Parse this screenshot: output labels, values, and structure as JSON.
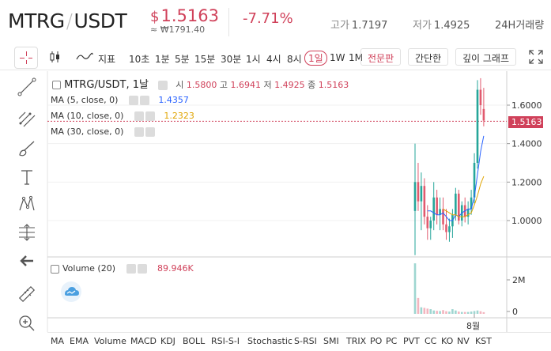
{
  "header": {
    "pair_base": "MTRG",
    "pair_sep": "/",
    "pair_quote": "USDT",
    "price_currency": "$",
    "price": "1.5163",
    "krw": "≈ ₩1791.40",
    "change": "-7.71%",
    "high_label": "고가",
    "high_value": "1.7197",
    "low_label": "저가",
    "low_value": "1.4925",
    "volume_label": "24H거래량"
  },
  "toolbar": {
    "indicator_label": "지표",
    "intervals": [
      "10초",
      "1분",
      "5분",
      "15분",
      "30분",
      "1시",
      "4시",
      "8시",
      "1일",
      "1W",
      "1M"
    ],
    "active_interval": "1일",
    "tabs": [
      "전문판",
      "간단한",
      "깊이 그래프"
    ],
    "active_tab": "전문판"
  },
  "tools": [
    "crosshair-icon",
    "trendline-icon",
    "fib-icon",
    "brush-icon",
    "text-icon",
    "pattern-icon",
    "measure-icon",
    "back-arrow-icon",
    "ruler-icon",
    "zoom-icon"
  ],
  "legend": {
    "title": "MTRG/USDT, 1날",
    "open_label": "시",
    "open": "1.5800",
    "high_label": "고",
    "high": "1.6941",
    "low_label": "저",
    "low": "1.4925",
    "close_label": "종",
    "close": "1.5163"
  },
  "ma": [
    {
      "label": "MA (5, close, 0)",
      "value": "1.4357",
      "color": "#2962ff"
    },
    {
      "label": "MA (10, close, 0)",
      "value": "1.2323",
      "color": "#e0a400"
    },
    {
      "label": "MA (30, close, 0)",
      "value": "",
      "color": "#8e44ad"
    }
  ],
  "volume": {
    "label": "Volume (20)",
    "value": "89.946K"
  },
  "price_tag": "1.5163",
  "month_label": "8월",
  "indicators": [
    "MA",
    "EMA",
    "Volume",
    "MACD",
    "KDJ",
    "BOLL",
    "RSI-S-I",
    "Stochastic",
    "S-RSI",
    "SMI",
    "TRIX",
    "PO",
    "PC",
    "PVT",
    "CC",
    "KO",
    "NV",
    "KST"
  ],
  "chart_data": {
    "type": "candlestick",
    "y_ticks": [
      "1.6000",
      "1.4000",
      "1.2000",
      "1.0000"
    ],
    "volume_ticks": [
      "2M",
      "0"
    ],
    "ylim": [
      0.85,
      1.75
    ],
    "last_price": 1.5163,
    "candles": [
      {
        "o": 1.05,
        "h": 1.4,
        "l": 0.82,
        "c": 1.2
      },
      {
        "o": 1.2,
        "h": 1.3,
        "l": 1.05,
        "c": 1.1
      },
      {
        "o": 1.1,
        "h": 1.25,
        "l": 0.95,
        "c": 1.18
      },
      {
        "o": 1.18,
        "h": 1.22,
        "l": 0.98,
        "c": 1.02
      },
      {
        "o": 1.02,
        "h": 1.08,
        "l": 0.9,
        "c": 0.96
      },
      {
        "o": 0.96,
        "h": 1.02,
        "l": 0.9,
        "c": 1.0
      },
      {
        "o": 1.0,
        "h": 1.2,
        "l": 0.95,
        "c": 1.12
      },
      {
        "o": 1.12,
        "h": 1.16,
        "l": 0.98,
        "c": 1.03
      },
      {
        "o": 1.03,
        "h": 1.12,
        "l": 0.95,
        "c": 1.06
      },
      {
        "o": 1.06,
        "h": 1.12,
        "l": 0.95,
        "c": 0.98
      },
      {
        "o": 0.98,
        "h": 1.06,
        "l": 0.9,
        "c": 0.94
      },
      {
        "o": 0.94,
        "h": 1.01,
        "l": 0.89,
        "c": 0.97
      },
      {
        "o": 0.97,
        "h": 1.06,
        "l": 0.91,
        "c": 1.03
      },
      {
        "o": 1.03,
        "h": 1.17,
        "l": 1.0,
        "c": 1.14
      },
      {
        "o": 1.14,
        "h": 1.16,
        "l": 0.98,
        "c": 1.0
      },
      {
        "o": 1.0,
        "h": 1.1,
        "l": 0.97,
        "c": 1.08
      },
      {
        "o": 1.08,
        "h": 1.12,
        "l": 0.99,
        "c": 1.02
      },
      {
        "o": 1.02,
        "h": 1.1,
        "l": 0.98,
        "c": 1.06
      },
      {
        "o": 1.06,
        "h": 1.16,
        "l": 1.03,
        "c": 1.12
      },
      {
        "o": 1.12,
        "h": 1.35,
        "l": 1.09,
        "c": 1.3
      },
      {
        "o": 1.3,
        "h": 1.73,
        "l": 1.27,
        "c": 1.68
      },
      {
        "o": 1.68,
        "h": 1.74,
        "l": 1.55,
        "c": 1.6
      },
      {
        "o": 1.58,
        "h": 1.69,
        "l": 1.49,
        "c": 1.52
      }
    ],
    "volumes": [
      2.7,
      0.85,
      0.35,
      0.32,
      0.28,
      0.25,
      0.18,
      0.16,
      0.15,
      0.2,
      0.14,
      0.12,
      0.25,
      0.18,
      0.12,
      0.1,
      0.1,
      0.1,
      0.12,
      0.15,
      0.18,
      0.14,
      0.09
    ],
    "volume_max": 3.0,
    "ma5": [
      null,
      null,
      null,
      null,
      1.05,
      1.05,
      1.04,
      1.03,
      1.03,
      1.04,
      1.02,
      1.0,
      1.0,
      1.03,
      1.02,
      1.04,
      1.05,
      1.06,
      1.06,
      1.12,
      1.24,
      1.36,
      1.44
    ],
    "ma10": [
      null,
      null,
      null,
      null,
      null,
      null,
      null,
      null,
      null,
      1.06,
      1.05,
      1.04,
      1.03,
      1.03,
      1.02,
      1.02,
      1.02,
      1.03,
      1.04,
      1.08,
      1.13,
      1.19,
      1.23
    ]
  }
}
